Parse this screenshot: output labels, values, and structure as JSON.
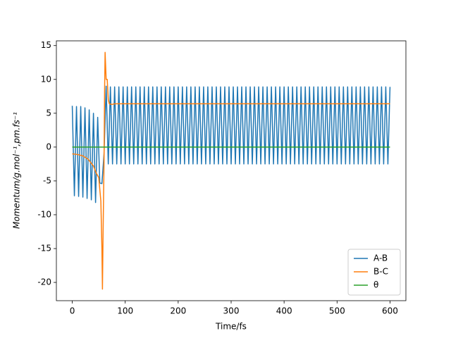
{
  "chart_data": {
    "type": "line",
    "xlabel": "Time/fs",
    "ylabel": "Momentum/g.mol⁻¹,pm.fs⁻¹",
    "xlim": [
      -30,
      630
    ],
    "ylim": [
      -22.7,
      15.7
    ],
    "xticks": [
      0,
      100,
      200,
      300,
      400,
      500,
      600
    ],
    "yticks": [
      -20,
      -15,
      -10,
      -5,
      0,
      5,
      10,
      15
    ],
    "legend": "lower right",
    "series": [
      {
        "name": "A-B",
        "color": "#1f77b4",
        "x": [
          0,
          4,
          8,
          12,
          16,
          20,
          24,
          28,
          32,
          36,
          40,
          44,
          48,
          52,
          56,
          60,
          64,
          68,
          72,
          76,
          80,
          84,
          88,
          92,
          96,
          100,
          104,
          108,
          112,
          116,
          120,
          124,
          128,
          132,
          136,
          140,
          144,
          148,
          152,
          156,
          160,
          164,
          168,
          172,
          176,
          180,
          184,
          188,
          192,
          196,
          200,
          204,
          208,
          212,
          216,
          220,
          224,
          228,
          232,
          236,
          240,
          244,
          248,
          252,
          256,
          260,
          264,
          268,
          272,
          276,
          280,
          284,
          288,
          292,
          296,
          300,
          304,
          308,
          312,
          316,
          320,
          324,
          328,
          332,
          336,
          340,
          344,
          348,
          352,
          356,
          360,
          364,
          368,
          372,
          376,
          380,
          384,
          388,
          392,
          396,
          400,
          404,
          408,
          412,
          416,
          420,
          424,
          428,
          432,
          436,
          440,
          444,
          448,
          452,
          456,
          460,
          464,
          468,
          472,
          476,
          480,
          484,
          488,
          492,
          496,
          500,
          504,
          508,
          512,
          516,
          520,
          524,
          528,
          532,
          536,
          540,
          544,
          548,
          552,
          556,
          560,
          564,
          568,
          572,
          576,
          580,
          584,
          588,
          592,
          596,
          600
        ],
        "values": [
          6.1,
          -7.2,
          6.0,
          -7.3,
          6.0,
          -7.4,
          5.8,
          -7.6,
          5.5,
          -7.8,
          5.0,
          -8.2,
          4.4,
          -5.3,
          -5.4,
          -1,
          9.0,
          -2.5,
          8.9,
          -2.5,
          8.9,
          -2.5,
          8.9,
          -2.5,
          8.9,
          -2.5,
          8.9,
          -2.5,
          8.9,
          -2.5,
          8.9,
          -2.5,
          8.9,
          -2.5,
          8.9,
          -2.5,
          8.9,
          -2.5,
          8.9,
          -2.5,
          8.9,
          -2.5,
          8.9,
          -2.5,
          8.9,
          -2.5,
          8.9,
          -2.5,
          8.9,
          -2.5,
          8.9,
          -2.5,
          8.9,
          -2.5,
          8.9,
          -2.5,
          8.9,
          -2.5,
          8.9,
          -2.5,
          8.9,
          -2.5,
          8.9,
          -2.5,
          8.9,
          -2.5,
          8.9,
          -2.5,
          8.9,
          -2.5,
          8.9,
          -2.5,
          8.9,
          -2.5,
          8.9,
          -2.5,
          8.9,
          -2.5,
          8.9,
          -2.5,
          8.9,
          -2.5,
          8.9,
          -2.5,
          8.9,
          -2.5,
          8.9,
          -2.5,
          8.9,
          -2.5,
          8.9,
          -2.5,
          8.9,
          -2.5,
          8.9,
          -2.5,
          8.9,
          -2.5,
          8.9,
          -2.5,
          8.9,
          -2.5,
          8.9,
          -2.5,
          8.9,
          -2.5,
          8.9,
          -2.5,
          8.9,
          -2.5,
          8.9,
          -2.5,
          8.9,
          -2.5,
          8.9,
          -2.5,
          8.9,
          -2.5,
          8.9,
          -2.5,
          8.9,
          -2.5,
          8.9,
          -2.5,
          8.9,
          -2.5,
          8.9,
          -2.5,
          8.9,
          -2.5,
          8.9,
          -2.5,
          8.9,
          -2.5,
          8.9,
          -2.5,
          8.9,
          -2.5,
          8.9,
          -2.5,
          8.9,
          -2.5,
          8.9,
          -2.5,
          8.9,
          -2.5,
          8.9,
          -2.5,
          8.9,
          -2.5,
          8.9
        ]
      },
      {
        "name": "B-C",
        "color": "#ff7f0e",
        "x": [
          0,
          10,
          20,
          30,
          40,
          45,
          50,
          54,
          56,
          57,
          58,
          60,
          61,
          62,
          64,
          66,
          68,
          70,
          75,
          80,
          100,
          600
        ],
        "values": [
          -1,
          -1.1,
          -1.3,
          -1.8,
          -2.8,
          -3.8,
          -4.5,
          -8,
          -15,
          -21,
          -14,
          -2,
          8,
          14,
          10,
          10,
          7,
          6.4,
          6.3,
          6.4,
          6.4,
          6.4
        ]
      },
      {
        "name": "θ",
        "color": "#2ca02c",
        "x": [
          0,
          600
        ],
        "values": [
          0,
          0
        ]
      }
    ]
  }
}
